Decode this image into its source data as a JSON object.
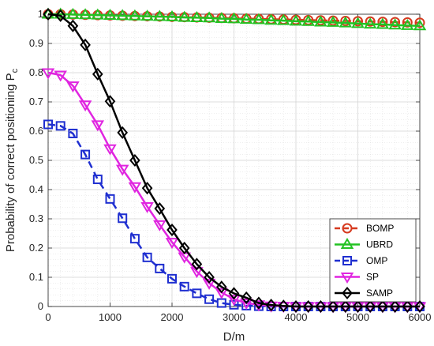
{
  "chart_data": {
    "type": "line",
    "xlabel": "D/m",
    "ylabel_main": "Probability of correct positioning P",
    "ylabel_sub": "c",
    "xlim": [
      0,
      6000
    ],
    "ylim": [
      0,
      1
    ],
    "xticks": [
      0,
      1000,
      2000,
      3000,
      4000,
      5000,
      6000
    ],
    "xtick_labels": [
      "0",
      "1000",
      "2000",
      "3000",
      "4000",
      "5000",
      "6000"
    ],
    "yticks": [
      0,
      0.1,
      0.2,
      0.3,
      0.4,
      0.5,
      0.6,
      0.7,
      0.8,
      0.9,
      1
    ],
    "ytick_labels": [
      "0",
      "0.1",
      "0.2",
      "0.3",
      "0.4",
      "0.5",
      "0.6",
      "0.7",
      "0.8",
      "0.9",
      "1"
    ],
    "grid": true,
    "minor_grid": true,
    "legend_position": "bottom-right",
    "x": [
      0,
      200,
      400,
      600,
      800,
      1000,
      1200,
      1400,
      1600,
      1800,
      2000,
      2200,
      2400,
      2600,
      2800,
      3000,
      3200,
      3400,
      3600,
      3800,
      4000,
      4200,
      4400,
      4600,
      4800,
      5000,
      5200,
      5400,
      5600,
      5800,
      6000
    ],
    "series": [
      {
        "name": "BOMP",
        "color": "#d63a1f",
        "marker": "circle",
        "line": "dashed",
        "values": [
          1,
          1,
          0.999,
          0.998,
          0.997,
          0.996,
          0.995,
          0.994,
          0.993,
          0.992,
          0.991,
          0.99,
          0.989,
          0.988,
          0.987,
          0.986,
          0.985,
          0.984,
          0.983,
          0.982,
          0.981,
          0.98,
          0.979,
          0.978,
          0.977,
          0.976,
          0.975,
          0.974,
          0.973,
          0.972,
          0.971
        ]
      },
      {
        "name": "UBRD",
        "color": "#22c222",
        "marker": "triangle-up",
        "line": "solid",
        "values": [
          1,
          1,
          0.999,
          0.998,
          0.997,
          0.996,
          0.995,
          0.994,
          0.993,
          0.992,
          0.991,
          0.989,
          0.988,
          0.987,
          0.985,
          0.984,
          0.982,
          0.981,
          0.979,
          0.978,
          0.976,
          0.975,
          0.973,
          0.972,
          0.97,
          0.968,
          0.966,
          0.965,
          0.963,
          0.961,
          0.96
        ]
      },
      {
        "name": "OMP",
        "color": "#1f2fd0",
        "marker": "square",
        "line": "dashed",
        "values": [
          0.623,
          0.618,
          0.592,
          0.52,
          0.435,
          0.368,
          0.302,
          0.232,
          0.168,
          0.13,
          0.095,
          0.068,
          0.045,
          0.025,
          0.012,
          0.006,
          0.003,
          0.001,
          0,
          0,
          0,
          0,
          0,
          0,
          0,
          0,
          0,
          0,
          0,
          0,
          0
        ]
      },
      {
        "name": "SP",
        "color": "#e025e0",
        "marker": "triangle-down",
        "line": "solid",
        "values": [
          0.8,
          0.792,
          0.755,
          0.69,
          0.622,
          0.54,
          0.47,
          0.41,
          0.342,
          0.28,
          0.22,
          0.17,
          0.12,
          0.08,
          0.048,
          0.025,
          0.012,
          0.006,
          0.002,
          0.001,
          0,
          0,
          0,
          0,
          0,
          0,
          0,
          0,
          0,
          0,
          0
        ]
      },
      {
        "name": "SAMP",
        "color": "#000000",
        "marker": "diamond",
        "line": "solid",
        "values": [
          1,
          0.995,
          0.96,
          0.895,
          0.795,
          0.702,
          0.595,
          0.5,
          0.405,
          0.335,
          0.262,
          0.2,
          0.145,
          0.1,
          0.067,
          0.045,
          0.03,
          0.012,
          0.005,
          0.002,
          0,
          0,
          0,
          0,
          0,
          0,
          0,
          0,
          0,
          0,
          0
        ]
      }
    ]
  }
}
